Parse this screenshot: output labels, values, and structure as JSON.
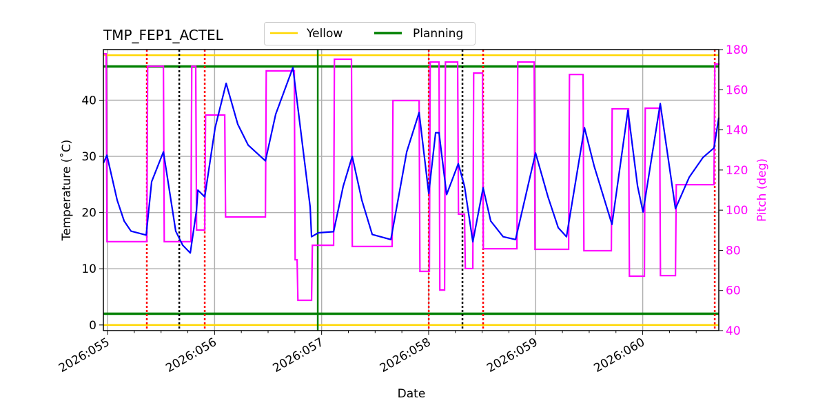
{
  "chart_data": {
    "type": "line",
    "title": "TMP_FEP1_ACTEL",
    "xlabel": "Date",
    "ylabel": "Temperature ($^\\circ$C)",
    "ylabel_display": "Temperature (˚C)",
    "y2label": "Pitch (deg)",
    "xlim": [
      54.961,
      60.711
    ],
    "ylim": [
      -1,
      49
    ],
    "y2lim": [
      40,
      180
    ],
    "grid": true,
    "legend_placement": "top-center, above plot",
    "x_ticks": [
      {
        "value": 55,
        "label": "2026:055"
      },
      {
        "value": 56,
        "label": "2026:056"
      },
      {
        "value": 57,
        "label": "2026:057"
      },
      {
        "value": 58,
        "label": "2026:058"
      },
      {
        "value": 59,
        "label": "2026:059"
      },
      {
        "value": 60,
        "label": "2026:060"
      }
    ],
    "y_ticks": [
      0,
      10,
      20,
      30,
      40
    ],
    "y2_ticks": [
      40,
      60,
      80,
      100,
      120,
      140,
      160,
      180
    ],
    "colors": {
      "temperature": "#0000ff",
      "pitch": "#ff00ff",
      "yellow": "#ffd700",
      "planning": "#008000",
      "red_marker": "#ff0000",
      "black_marker": "#000000",
      "green_marker": "#008000",
      "grid": "#b0b0b0"
    },
    "limit_lines": [
      {
        "name": "Yellow",
        "values": [
          0,
          48
        ],
        "color": "#ffd700"
      },
      {
        "name": "Planning",
        "values": [
          2,
          46
        ],
        "color": "#008000"
      }
    ],
    "vertical_markers": {
      "red_dotted": [
        55.367,
        55.908,
        58.001,
        58.509,
        60.673
      ],
      "black_dotted": [
        55.67,
        58.316
      ],
      "green_solid": [
        56.964
      ]
    },
    "temperature": [
      [
        54.961,
        28.8
      ],
      [
        54.994,
        30.2
      ],
      [
        55.09,
        22.2
      ],
      [
        55.155,
        18.5
      ],
      [
        55.219,
        16.7
      ],
      [
        55.361,
        16.0
      ],
      [
        55.412,
        25.5
      ],
      [
        55.522,
        30.8
      ],
      [
        55.637,
        16.7
      ],
      [
        55.702,
        14.2
      ],
      [
        55.773,
        12.8
      ],
      [
        55.831,
        20.4
      ],
      [
        55.844,
        24.0
      ],
      [
        55.908,
        22.8
      ],
      [
        56.005,
        35.1
      ],
      [
        56.108,
        43.0
      ],
      [
        56.217,
        35.7
      ],
      [
        56.314,
        32.0
      ],
      [
        56.475,
        29.2
      ],
      [
        56.571,
        37.5
      ],
      [
        56.732,
        45.8
      ],
      [
        56.893,
        21.0
      ],
      [
        56.906,
        15.7
      ],
      [
        56.97,
        16.4
      ],
      [
        57.112,
        16.6
      ],
      [
        57.202,
        24.7
      ],
      [
        57.286,
        30.0
      ],
      [
        57.376,
        22.2
      ],
      [
        57.473,
        16.1
      ],
      [
        57.647,
        15.2
      ],
      [
        57.795,
        30.8
      ],
      [
        57.911,
        37.8
      ],
      [
        58.001,
        23.4
      ],
      [
        58.065,
        34.2
      ],
      [
        58.097,
        34.2
      ],
      [
        58.168,
        23.2
      ],
      [
        58.277,
        28.7
      ],
      [
        58.335,
        24.7
      ],
      [
        58.413,
        14.8
      ],
      [
        58.509,
        24.4
      ],
      [
        58.58,
        18.5
      ],
      [
        58.696,
        15.7
      ],
      [
        58.812,
        15.2
      ],
      [
        58.999,
        30.6
      ],
      [
        59.115,
        22.8
      ],
      [
        59.211,
        17.3
      ],
      [
        59.288,
        15.7
      ],
      [
        59.456,
        35.1
      ],
      [
        59.546,
        28.3
      ],
      [
        59.713,
        17.9
      ],
      [
        59.862,
        38.2
      ],
      [
        59.952,
        24.7
      ],
      [
        60.003,
        20.1
      ],
      [
        60.164,
        39.4
      ],
      [
        60.306,
        20.7
      ],
      [
        60.435,
        26.3
      ],
      [
        60.563,
        29.8
      ],
      [
        60.666,
        31.5
      ],
      [
        60.711,
        36.9
      ]
    ],
    "pitch_steps": [
      [
        54.961,
        177.9
      ],
      [
        54.987,
        84.3
      ],
      [
        55.367,
        171.7
      ],
      [
        55.522,
        84.3
      ],
      [
        55.779,
        171.7
      ],
      [
        55.824,
        90.1
      ],
      [
        55.908,
        147.4
      ],
      [
        56.095,
        96.6
      ],
      [
        56.475,
        169.4
      ],
      [
        56.745,
        75.3
      ],
      [
        56.771,
        55.1
      ],
      [
        56.906,
        82.5
      ],
      [
        57.112,
        175.2
      ],
      [
        57.279,
        81.9
      ],
      [
        57.659,
        154.6
      ],
      [
        57.911,
        69.5
      ],
      [
        58.007,
        173.8
      ],
      [
        58.097,
        60.2
      ],
      [
        58.149,
        173.8
      ],
      [
        58.271,
        98.0
      ],
      [
        58.335,
        70.9
      ],
      [
        58.413,
        168.3
      ],
      [
        58.503,
        80.8
      ],
      [
        58.825,
        173.8
      ],
      [
        58.986,
        80.5
      ],
      [
        59.308,
        167.6
      ],
      [
        59.443,
        79.8
      ],
      [
        59.707,
        150.5
      ],
      [
        59.868,
        67.1
      ],
      [
        60.016,
        150.8
      ],
      [
        60.158,
        67.4
      ],
      [
        60.306,
        112.7
      ],
      [
        60.666,
        172.8
      ],
      [
        60.711,
        172.8
      ]
    ]
  }
}
